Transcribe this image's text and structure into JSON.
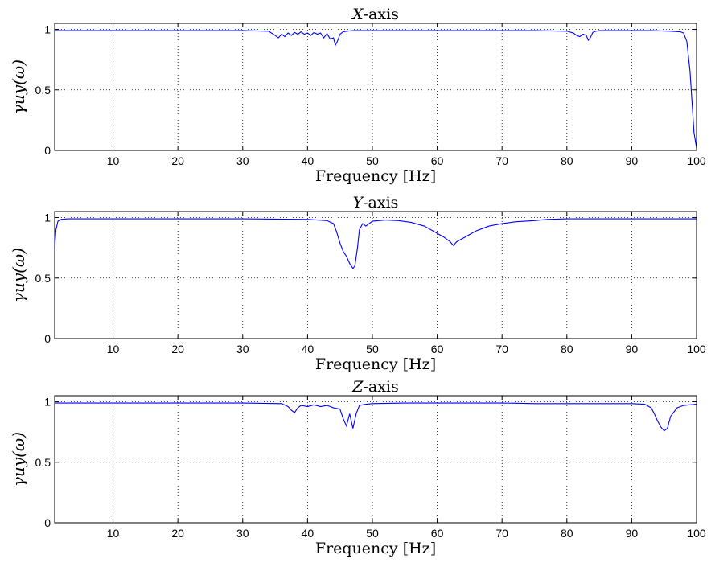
{
  "chart_data": [
    {
      "type": "line",
      "title_var": "X",
      "title_rest": "-axis",
      "xlabel": "Frequency [Hz]",
      "ylabel": "γuy(ω)",
      "xlim": [
        1,
        100
      ],
      "ylim": [
        0,
        1.05
      ],
      "xticks": [
        10,
        20,
        30,
        40,
        50,
        60,
        70,
        80,
        90,
        100
      ],
      "yticks": [
        0,
        0.5,
        1
      ],
      "grid": true,
      "color": "#0000ff",
      "series": [
        {
          "x": [
            1,
            2,
            5,
            10,
            20,
            30,
            34,
            35,
            35.5,
            36,
            36.5,
            37,
            37.5,
            38,
            38.5,
            39,
            39.5,
            40,
            40.5,
            41,
            41.5,
            42,
            42.5,
            43,
            43.5,
            44,
            44.3,
            44.6,
            45,
            45.5,
            46,
            47,
            48,
            50,
            55,
            60,
            65,
            70,
            75,
            80,
            81,
            81.5,
            82,
            82.5,
            83,
            83.3,
            83.6,
            84,
            84.5,
            85,
            87,
            90,
            93,
            96,
            97.5,
            98,
            98.5,
            99,
            99.3,
            99.6,
            100
          ],
          "y": [
            0.99,
            0.99,
            0.99,
            0.99,
            0.99,
            0.99,
            0.985,
            0.95,
            0.93,
            0.96,
            0.94,
            0.97,
            0.95,
            0.975,
            0.96,
            0.98,
            0.96,
            0.97,
            0.95,
            0.975,
            0.96,
            0.97,
            0.93,
            0.965,
            0.92,
            0.93,
            0.87,
            0.9,
            0.96,
            0.98,
            0.985,
            0.99,
            0.99,
            0.99,
            0.99,
            0.99,
            0.99,
            0.99,
            0.99,
            0.985,
            0.97,
            0.95,
            0.94,
            0.96,
            0.95,
            0.91,
            0.93,
            0.975,
            0.985,
            0.99,
            0.99,
            0.99,
            0.99,
            0.985,
            0.98,
            0.97,
            0.9,
            0.65,
            0.4,
            0.15,
            0.02
          ]
        }
      ]
    },
    {
      "type": "line",
      "title_var": "Y",
      "title_rest": "-axis",
      "xlabel": "Frequency [Hz]",
      "ylabel": "γuy(ω)",
      "xlim": [
        1,
        100
      ],
      "ylim": [
        0,
        1.05
      ],
      "xticks": [
        10,
        20,
        30,
        40,
        50,
        60,
        70,
        80,
        90,
        100
      ],
      "yticks": [
        0,
        0.5,
        1
      ],
      "grid": true,
      "color": "#0000ff",
      "series": [
        {
          "x": [
            1,
            1.2,
            1.5,
            2,
            3,
            5,
            10,
            20,
            30,
            40,
            43,
            44,
            44.5,
            45,
            45.5,
            46,
            46.5,
            47,
            47.3,
            47.7,
            48,
            48.5,
            49,
            50,
            52,
            54,
            56,
            58,
            59,
            60,
            61,
            62,
            62.5,
            63,
            64,
            65,
            66,
            67,
            68,
            70,
            72,
            75,
            77,
            80,
            90,
            100
          ],
          "y": [
            0.75,
            0.9,
            0.97,
            0.985,
            0.99,
            0.99,
            0.99,
            0.99,
            0.99,
            0.985,
            0.975,
            0.95,
            0.88,
            0.79,
            0.72,
            0.68,
            0.62,
            0.58,
            0.6,
            0.75,
            0.9,
            0.95,
            0.93,
            0.97,
            0.98,
            0.975,
            0.96,
            0.93,
            0.9,
            0.87,
            0.84,
            0.8,
            0.77,
            0.8,
            0.83,
            0.86,
            0.89,
            0.91,
            0.93,
            0.95,
            0.965,
            0.975,
            0.985,
            0.99,
            0.99,
            0.99
          ]
        }
      ]
    },
    {
      "type": "line",
      "title_var": "Z",
      "title_rest": "-axis",
      "xlabel": "Frequency [Hz]",
      "ylabel": "γuy(ω)",
      "xlim": [
        1,
        100
      ],
      "ylim": [
        0,
        1.05
      ],
      "xticks": [
        10,
        20,
        30,
        40,
        50,
        60,
        70,
        80,
        90,
        100
      ],
      "yticks": [
        0,
        0.5,
        1
      ],
      "grid": true,
      "color": "#0000ff",
      "series": [
        {
          "x": [
            1,
            5,
            10,
            20,
            30,
            36,
            37,
            37.5,
            38,
            38.5,
            39,
            40,
            41,
            42,
            43,
            44,
            45,
            45.5,
            46,
            46.5,
            47,
            47.5,
            48,
            49,
            50,
            55,
            60,
            65,
            70,
            75,
            80,
            85,
            90,
            92,
            93,
            93.5,
            94,
            94.5,
            95,
            95.5,
            96,
            97,
            98,
            99,
            100
          ],
          "y": [
            0.99,
            0.99,
            0.99,
            0.99,
            0.99,
            0.985,
            0.96,
            0.93,
            0.91,
            0.95,
            0.97,
            0.96,
            0.975,
            0.96,
            0.97,
            0.95,
            0.94,
            0.86,
            0.8,
            0.9,
            0.78,
            0.9,
            0.97,
            0.98,
            0.985,
            0.99,
            0.99,
            0.99,
            0.99,
            0.985,
            0.985,
            0.985,
            0.985,
            0.98,
            0.95,
            0.9,
            0.84,
            0.79,
            0.76,
            0.78,
            0.88,
            0.95,
            0.97,
            0.975,
            0.98
          ]
        }
      ]
    }
  ]
}
